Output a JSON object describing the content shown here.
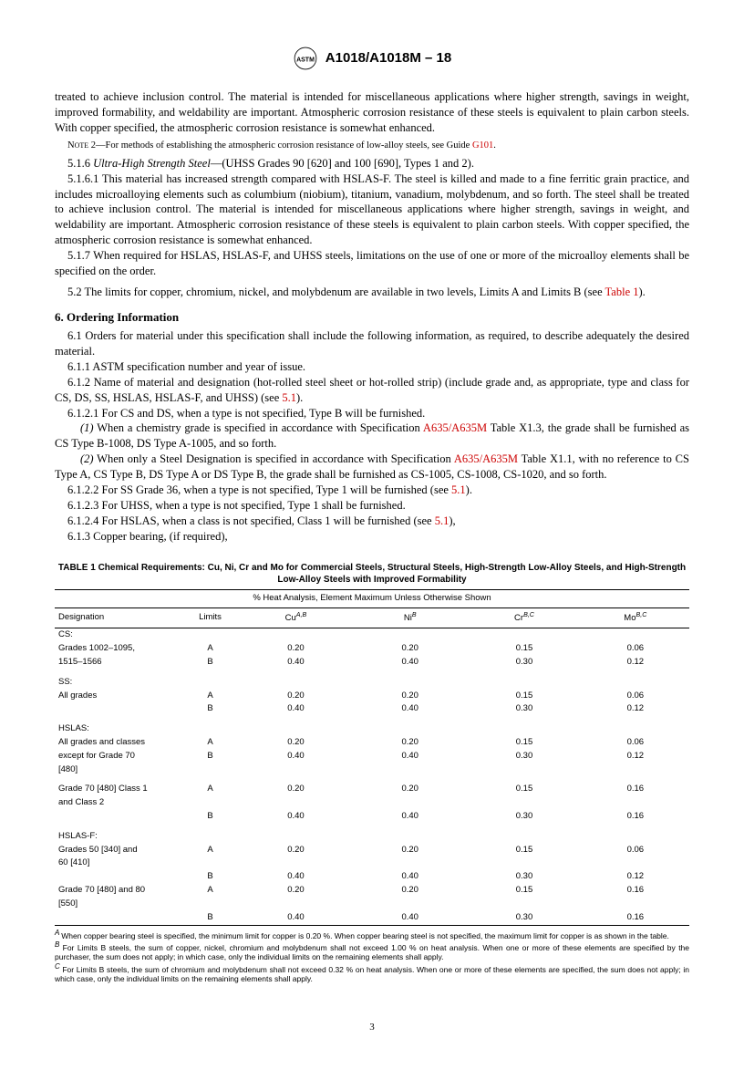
{
  "header": {
    "title": "A1018/A1018M – 18"
  },
  "paras": {
    "p1": "treated to achieve inclusion control. The material is intended for miscellaneous applications where higher strength, savings in weight, improved formability, and weldability are important. Atmospheric corrosion resistance of these steels is equivalent to plain carbon steels. With copper specified, the atmospheric corrosion resistance is somewhat enhanced.",
    "note2_pre": "NOTE 2—For methods of establishing the atmospheric corrosion resistance of low-alloy steels, see Guide ",
    "note2_link": "G101",
    "note2_post": ".",
    "p516": "5.1.6 Ultra-High Strength Steel—(UHSS Grades 90 [620] and 100 [690], Types 1 and 2).",
    "p5161": "5.1.6.1 This material has increased strength compared with HSLAS-F. The steel is killed and made to a fine ferritic grain practice, and includes microalloying elements such as columbium (niobium), titanium, vanadium, molybdenum, and so forth. The steel shall be treated to achieve inclusion control. The material is intended for miscellaneous applications where higher strength, savings in weight, and weldability are important. Atmospheric corrosion resistance of these steels is equivalent to plain carbon steels. With copper specified, the atmospheric corrosion resistance is somewhat enhanced.",
    "p517": "5.1.7 When required for HSLAS, HSLAS-F, and UHSS steels, limitations on the use of one or more of the microalloy elements shall be specified on the order.",
    "p52_pre": "5.2  The limits for copper, chromium, nickel, and molybdenum are available in two levels, Limits A and Limits B (see ",
    "p52_link": "Table 1",
    "p52_post": ").",
    "sec6": "6.  Ordering Information",
    "p61": "6.1  Orders for material under this specification shall include the following information, as required, to describe adequately the desired material.",
    "p611": "6.1.1 ASTM specification number and year of issue.",
    "p612_pre": "6.1.2 Name of material and designation (hot-rolled steel sheet or hot-rolled strip) (include grade and, as appropriate, type and class for CS, DS, SS, HSLAS, HSLAS-F, and UHSS) (see ",
    "p612_link": "5.1",
    "p612_post": ").",
    "p6121": "6.1.2.1 For CS and DS, when a type is not specified, Type B will be furnished.",
    "pi1_pre": "(1) When a chemistry grade is specified in accordance with Specification ",
    "pi1_link": "A635/A635M",
    "pi1_post": " Table X1.3, the grade shall be furnished as CS Type B-1008, DS Type A-1005, and so forth.",
    "pi2_pre": "(2) When only a Steel Designation is specified in accordance with Specification ",
    "pi2_link": "A635/A635M",
    "pi2_post": " Table X1.1, with no reference to CS Type A, CS Type B, DS Type A or DS Type B, the grade shall be furnished as CS-1005, CS-1008, CS-1020, and so forth.",
    "p6122_pre": "6.1.2.2 For SS Grade 36, when a type is not specified, Type 1 will be furnished (see ",
    "p6122_link": "5.1",
    "p6122_post": ").",
    "p6123": "6.1.2.3 For UHSS, when a type is not specified, Type 1 shall be furnished.",
    "p6124_pre": "6.1.2.4 For HSLAS, when a class is not specified, Class 1 will be furnished (see ",
    "p6124_link": "5.1",
    "p6124_post": "),",
    "p613": "6.1.3 Copper bearing, (if required),"
  },
  "table1": {
    "title": "TABLE 1 Chemical Requirements: Cu, Ni, Cr and Mo for Commercial Steels, Structural Steels, High-Strength Low-Alloy Steels, and High-Strength Low-Alloy Steels with Improved Formability",
    "subhead": "% Heat Analysis, Element Maximum Unless Otherwise Shown",
    "cols": {
      "c1": "Designation",
      "c2": "Limits",
      "c3": "Cu",
      "c3sup": "A,B",
      "c4": "Ni",
      "c4sup": "B",
      "c5": "Cr",
      "c5sup": "B,C",
      "c6": "Mo",
      "c6sup": "B,C"
    },
    "rows": [
      {
        "d": "CS:",
        "newgroup": true
      },
      {
        "d": "Grades 1002–1095,",
        "l": "A",
        "cu": "0.20",
        "ni": "0.20",
        "cr": "0.15",
        "mo": "0.06"
      },
      {
        "d": "1515–1566",
        "l": "B",
        "cu": "0.40",
        "ni": "0.40",
        "cr": "0.30",
        "mo": "0.12"
      },
      {
        "d": "SS:",
        "spacer": true
      },
      {
        "d": "All grades",
        "l": "A",
        "cu": "0.20",
        "ni": "0.20",
        "cr": "0.15",
        "mo": "0.06"
      },
      {
        "d": "",
        "l": "B",
        "cu": "0.40",
        "ni": "0.40",
        "cr": "0.30",
        "mo": "0.12"
      },
      {
        "d": "HSLAS:",
        "spacer": true
      },
      {
        "d": "All grades and classes",
        "l": "A",
        "cu": "0.20",
        "ni": "0.20",
        "cr": "0.15",
        "mo": "0.06"
      },
      {
        "d": "except for Grade 70",
        "l": "B",
        "cu": "0.40",
        "ni": "0.40",
        "cr": "0.30",
        "mo": "0.12"
      },
      {
        "d": "[480]"
      },
      {
        "d": "Grade 70 [480] Class 1",
        "l": "A",
        "cu": "0.20",
        "ni": "0.20",
        "cr": "0.15",
        "mo": "0.16",
        "spacer": true
      },
      {
        "d": "and Class 2"
      },
      {
        "d": "",
        "l": "B",
        "cu": "0.40",
        "ni": "0.40",
        "cr": "0.30",
        "mo": "0.16"
      },
      {
        "d": "HSLAS-F:",
        "spacer": true
      },
      {
        "d": "Grades 50 [340] and",
        "l": "A",
        "cu": "0.20",
        "ni": "0.20",
        "cr": "0.15",
        "mo": "0.06"
      },
      {
        "d": "60 [410]"
      },
      {
        "d": "",
        "l": "B",
        "cu": "0.40",
        "ni": "0.40",
        "cr": "0.30",
        "mo": "0.12"
      },
      {
        "d": "Grade 70 [480] and 80",
        "l": "A",
        "cu": "0.20",
        "ni": "0.20",
        "cr": "0.15",
        "mo": "0.16"
      },
      {
        "d": "[550]"
      },
      {
        "d": "",
        "l": "B",
        "cu": "0.40",
        "ni": "0.40",
        "cr": "0.30",
        "mo": "0.16",
        "lastrow": true
      }
    ],
    "footnotes": {
      "a": "When copper bearing steel is specified, the minimum limit for copper is 0.20 %. When copper bearing steel is not specified, the maximum limit for copper is as shown in the table.",
      "b": "For Limits B steels, the sum of copper, nickel, chromium and molybdenum shall not exceed 1.00 % on heat analysis. When one or more of these elements are specified by the purchaser, the sum does not apply; in which case, only the individual limits on the remaining elements shall apply.",
      "c": "For Limits B steels, the sum of chromium and molybdenum shall not exceed 0.32 % on heat analysis. When one or more of these elements are specified, the sum does not apply; in which case, only the individual limits on the remaining elements shall apply."
    }
  },
  "page_num": "3"
}
